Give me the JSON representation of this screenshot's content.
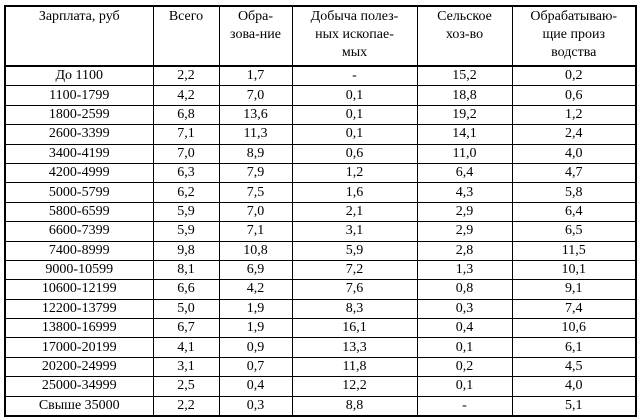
{
  "table": {
    "columns": [
      "Зарплата, руб",
      "Всего",
      "Обра-\nзова-ние",
      "Добыча полез-\nных ископае-\nмых",
      "Сельское\nхоз-во",
      "Обрабатываю-\nщие произ\nводства"
    ],
    "rows": [
      [
        "До 1100",
        "2,2",
        "1,7",
        "-",
        "15,2",
        "0,2"
      ],
      [
        "1100-1799",
        "4,2",
        "7,0",
        "0,1",
        "18,8",
        "0,6"
      ],
      [
        "1800-2599",
        "6,8",
        "13,6",
        "0,1",
        "19,2",
        "1,2"
      ],
      [
        "2600-3399",
        "7,1",
        "11,3",
        "0,1",
        "14,1",
        "2,4"
      ],
      [
        "3400-4199",
        "7,0",
        "8,9",
        "0,6",
        "11,0",
        "4,0"
      ],
      [
        "4200-4999",
        "6,3",
        "7,9",
        "1,2",
        "6,4",
        "4,7"
      ],
      [
        "5000-5799",
        "6,2",
        "7,5",
        "1,6",
        "4,3",
        "5,8"
      ],
      [
        "5800-6599",
        "5,9",
        "7,0",
        "2,1",
        "2,9",
        "6,4"
      ],
      [
        "6600-7399",
        "5,9",
        "7,1",
        "3,1",
        "2,9",
        "6,5"
      ],
      [
        "7400-8999",
        "9,8",
        "10,8",
        "5,9",
        "2,8",
        "11,5"
      ],
      [
        "9000-10599",
        "8,1",
        "6,9",
        "7,2",
        "1,3",
        "10,1"
      ],
      [
        "10600-12199",
        "6,6",
        "4,2",
        "7,6",
        "0,8",
        "9,1"
      ],
      [
        "12200-13799",
        "5,0",
        "1,9",
        "8,3",
        "0,3",
        "7,4"
      ],
      [
        "13800-16999",
        "6,7",
        "1,9",
        "16,1",
        "0,4",
        "10,6"
      ],
      [
        "17000-20199",
        "4,1",
        "0,9",
        "13,3",
        "0,1",
        "6,1"
      ],
      [
        "20200-24999",
        "3,1",
        "0,7",
        "11,8",
        "0,2",
        "4,5"
      ],
      [
        "25000-34999",
        "2,5",
        "0,4",
        "12,2",
        "0,1",
        "4,0"
      ],
      [
        "Свыше 35000",
        "2,2",
        "0,3",
        "8,8",
        "-",
        "5,1"
      ]
    ]
  }
}
